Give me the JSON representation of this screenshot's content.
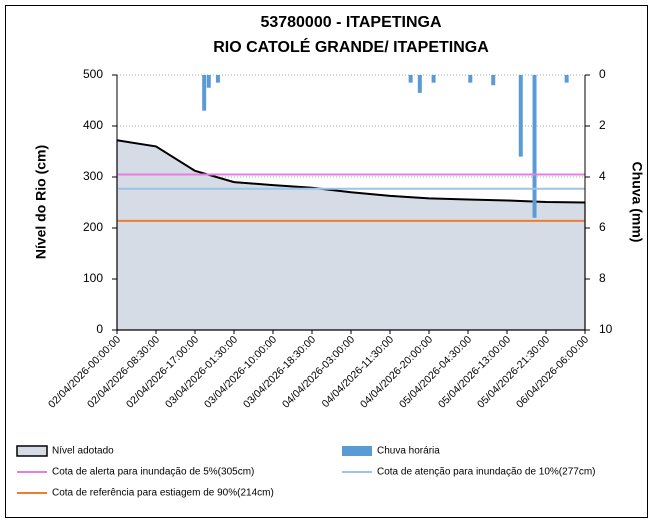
{
  "chart_data": {
    "type": "line-bar-combo",
    "title": [
      "53780000 - ITAPETINGA",
      "RIO CATOLÉ GRANDE/ ITAPETINGA"
    ],
    "y_label": "Nível do Rio (cm)",
    "y2_label": "Chuva (mm)",
    "xlim": [
      "02/04/2026-00:00:00",
      "06/04/2026-06:00:00"
    ],
    "xticks": [
      "02/04/2026-00:00:00",
      "02/04/2026-08:30:00",
      "02/04/2026-17:00:00",
      "03/04/2026-01:30:00",
      "03/04/2026-10:00:00",
      "03/04/2026-18:30:00",
      "04/04/2026-03:00:00",
      "04/04/2026-11:30:00",
      "04/04/2026-20:00:00",
      "05/04/2026-04:30:00",
      "05/04/2026-13:00:00",
      "05/04/2026-21:30:00",
      "06/04/2026-06:00:00"
    ],
    "ylim": [
      0,
      500
    ],
    "yticks": [
      0,
      100,
      200,
      300,
      400,
      500
    ],
    "y2lim": [
      0,
      10
    ],
    "y2ticks": [
      0,
      2,
      4,
      6,
      8,
      10
    ],
    "y2_inverted": true,
    "grid": true,
    "series": [
      {
        "name": "Nível adotado",
        "kind": "area",
        "color": "#d6dce5",
        "line_color": "#000000",
        "x": [
          "02/04/2026-00:00:00",
          "02/04/2026-08:30:00",
          "02/04/2026-17:00:00",
          "03/04/2026-01:30:00",
          "03/04/2026-10:00:00",
          "03/04/2026-18:30:00",
          "04/04/2026-03:00:00",
          "04/04/2026-11:30:00",
          "04/04/2026-20:00:00",
          "05/04/2026-04:30:00",
          "05/04/2026-13:00:00",
          "05/04/2026-21:30:00",
          "06/04/2026-06:00:00"
        ],
        "values": [
          372,
          360,
          312,
          290,
          284,
          279,
          270,
          263,
          258,
          256,
          254,
          251,
          250
        ]
      },
      {
        "name": "Chuva horária",
        "kind": "bar",
        "axis": "y2",
        "color": "#5b9bd5",
        "x": [
          "02/04/2026-19:00:00",
          "02/04/2026-20:00:00",
          "02/04/2026-22:00:00",
          "04/04/2026-16:00:00",
          "04/04/2026-18:00:00",
          "04/04/2026-21:00:00",
          "05/04/2026-05:00:00",
          "05/04/2026-10:00:00",
          "05/04/2026-16:00:00",
          "05/04/2026-19:00:00",
          "06/04/2026-02:00:00"
        ],
        "values": [
          1.4,
          0.5,
          0.3,
          0.3,
          0.7,
          0.3,
          0.3,
          0.4,
          3.2,
          5.6,
          0.3
        ]
      }
    ],
    "reference_lines": [
      {
        "name": "Cota de alerta para inundação de 5%(305cm)",
        "value": 305,
        "color": "#e47ee4"
      },
      {
        "name": "Cota de atenção para inundação de 10%(277cm)",
        "value": 277,
        "color": "#9dc3e6"
      },
      {
        "name": "Cota de referência para estiagem de 90%(214cm)",
        "value": 214,
        "color": "#ed7d31"
      }
    ]
  }
}
